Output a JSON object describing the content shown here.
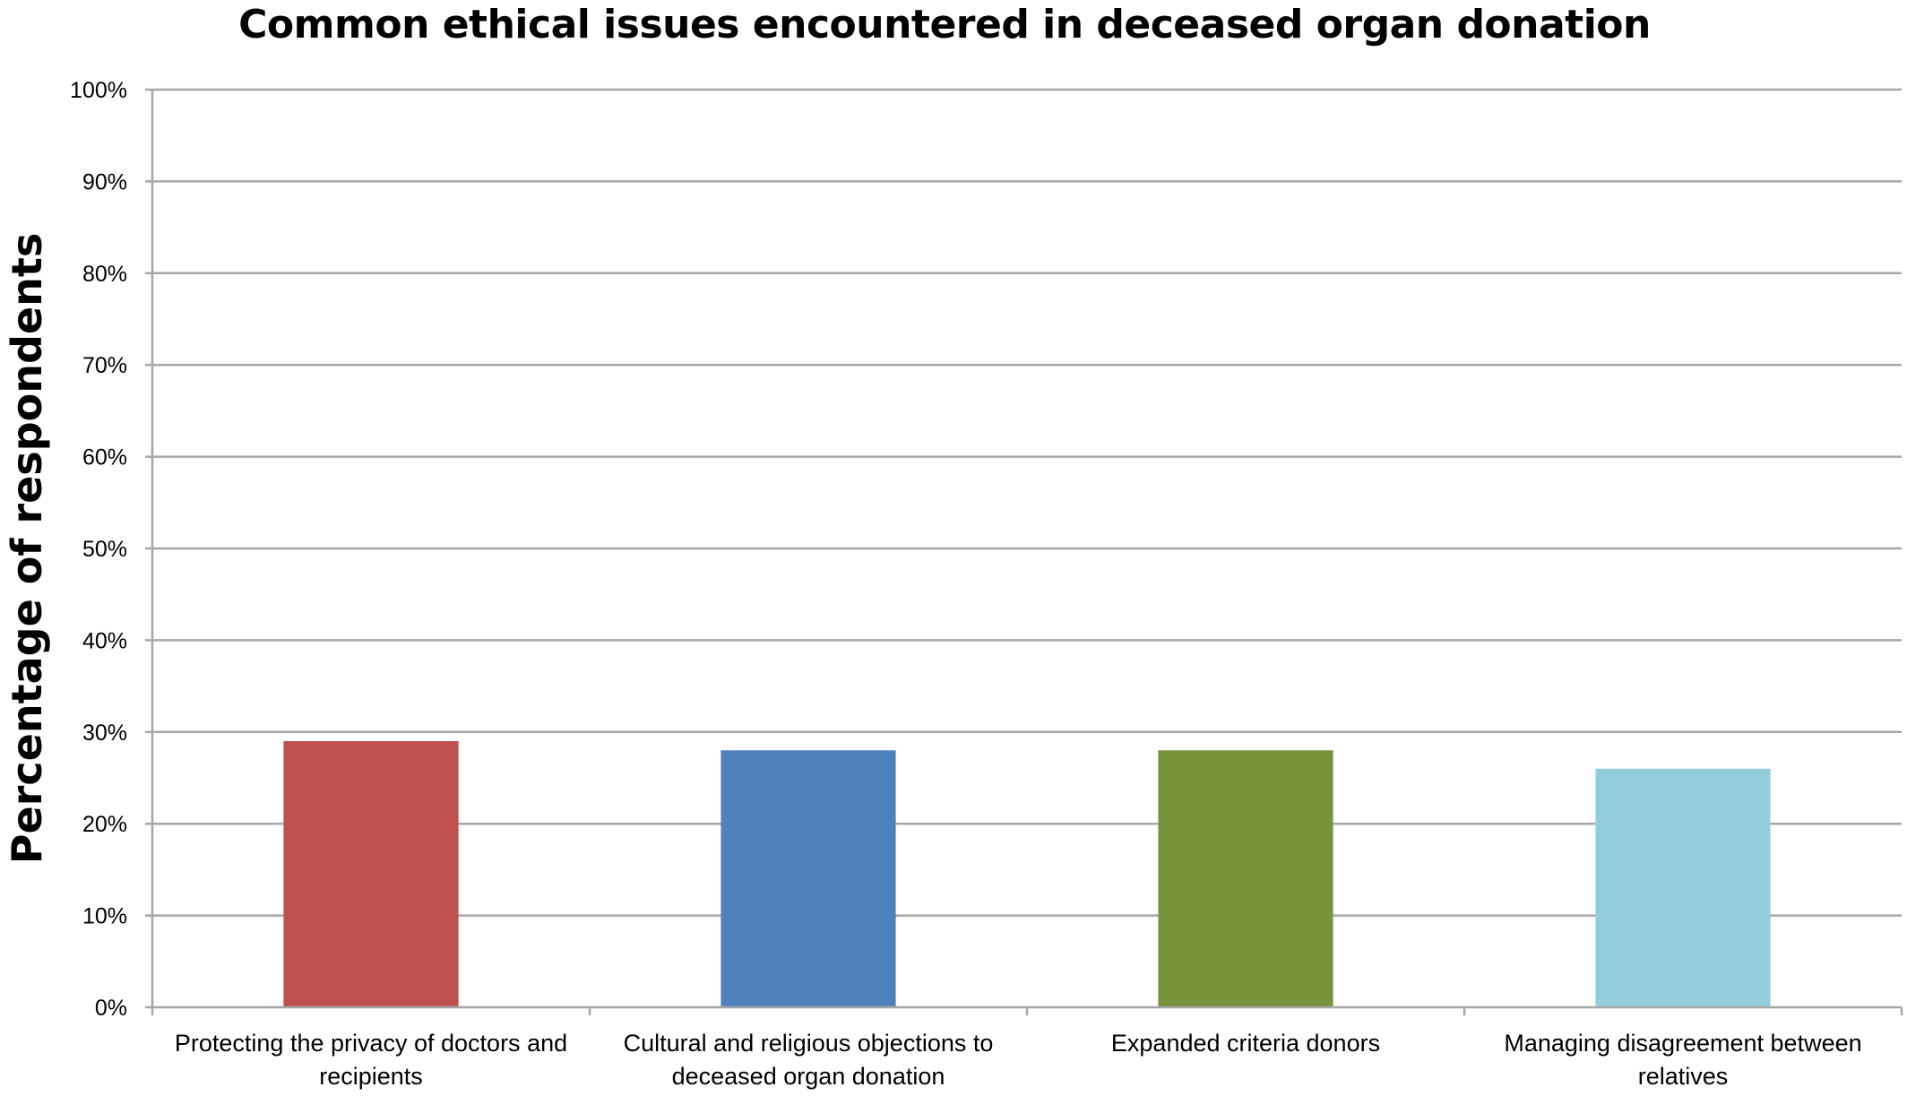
{
  "chart_data": {
    "type": "bar",
    "title": "Common ethical issues encountered in deceased organ donation",
    "xlabel": "",
    "ylabel": "Percentage of respondents",
    "ylim": [
      0,
      100
    ],
    "yticks": [
      "0%",
      "10%",
      "20%",
      "30%",
      "40%",
      "50%",
      "60%",
      "70%",
      "80%",
      "90%",
      "100%"
    ],
    "categories": [
      "Protecting the privacy of doctors and recipients",
      "Cultural and religious objections to deceased organ donation",
      "Expanded criteria donors",
      "Managing disagreement between relatives"
    ],
    "values": [
      29,
      28,
      28,
      26
    ],
    "colors": [
      "#c0504d",
      "#4f81bd",
      "#77933c",
      "#92cddc"
    ],
    "grid": true,
    "legend": "none"
  }
}
